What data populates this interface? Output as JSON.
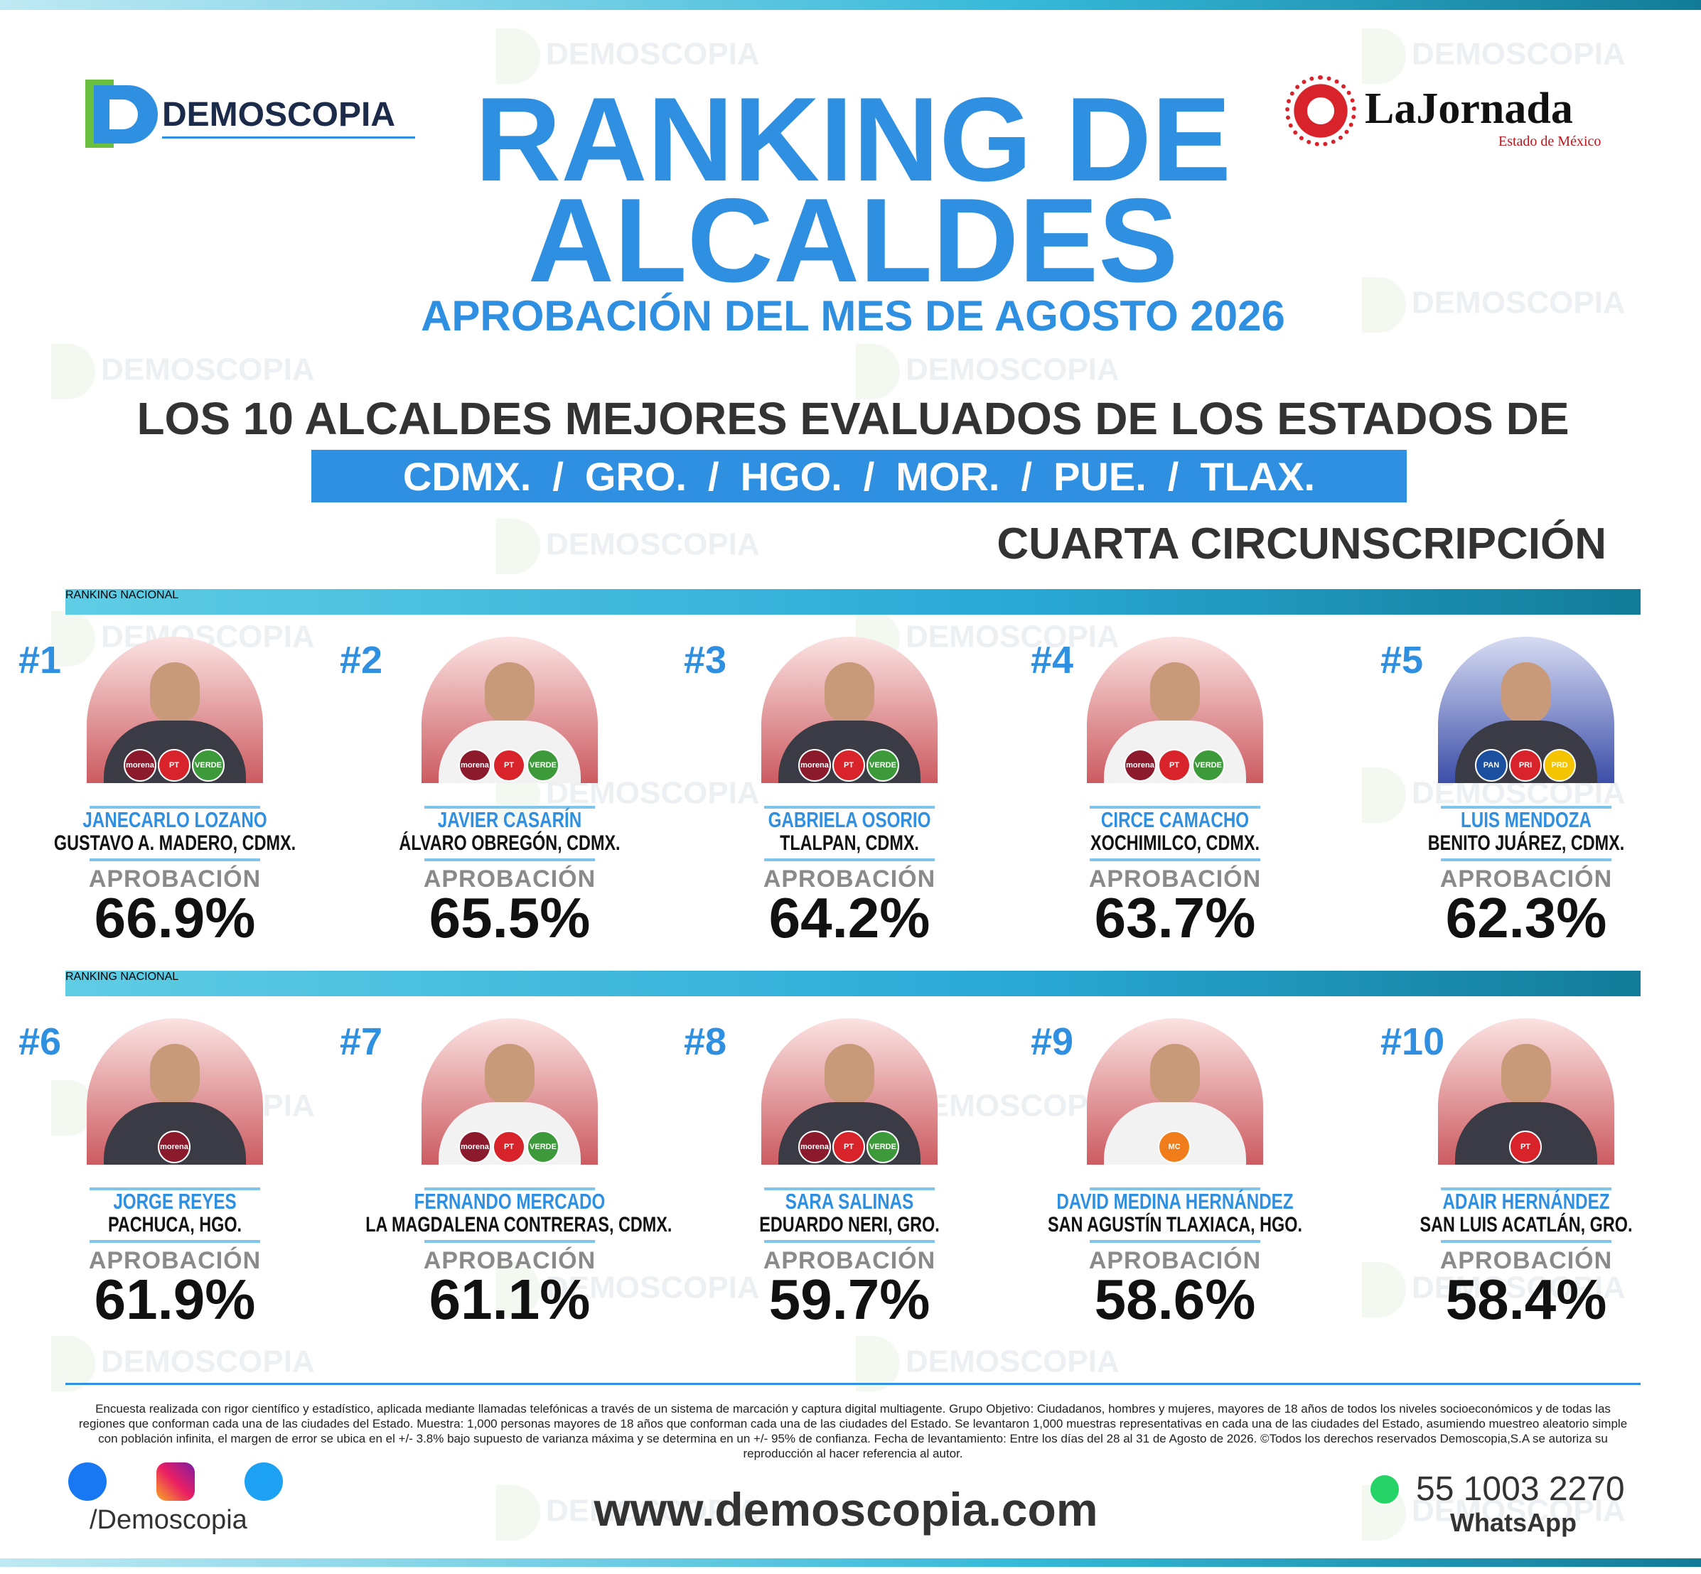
{
  "header": {
    "logo_left": "DEMOSCOPIA",
    "logo_right": "LaJornada",
    "logo_right_sub": "Estado de México",
    "title_line1": "RANKING DE",
    "title_line2": "ALCALDES",
    "subtitle": "APROBACIÓN DEL MES DE AGOSTO 2026",
    "heading": "LOS 10 ALCALDES MEJORES EVALUADOS DE LOS ESTADOS DE",
    "states": [
      "CDMX.",
      "GRO.",
      "HGO.",
      "MOR.",
      "PUE.",
      "TLAX."
    ],
    "state_separator": "/",
    "region": "CUARTA CIRCUNSCRIPCIÓN"
  },
  "watermark": "DEMOSCOPIA",
  "approval_label": "APROBACIÓN",
  "sections": [
    {
      "label": "RANKING NACIONAL",
      "candidates": [
        {
          "rank": "#1",
          "name": "JANECARLO LOZANO",
          "place": "GUSTAVO A. MADERO, CDMX.",
          "approval": "66.9%",
          "parties": [
            "morena",
            "PT",
            "VERDE"
          ]
        },
        {
          "rank": "#2",
          "name": "JAVIER CASARÍN",
          "place": "ÁLVARO OBREGÓN, CDMX.",
          "approval": "65.5%",
          "parties": [
            "morena",
            "PT",
            "VERDE"
          ]
        },
        {
          "rank": "#3",
          "name": "GABRIELA OSORIO",
          "place": "TLALPAN, CDMX.",
          "approval": "64.2%",
          "parties": [
            "morena",
            "PT",
            "VERDE"
          ]
        },
        {
          "rank": "#4",
          "name": "CIRCE CAMACHO",
          "place": "XOCHIMILCO, CDMX.",
          "approval": "63.7%",
          "parties": [
            "morena",
            "PT",
            "VERDE"
          ]
        },
        {
          "rank": "#5",
          "name": "LUIS MENDOZA",
          "place": "BENITO JUÁREZ, CDMX.",
          "approval": "62.3%",
          "parties": [
            "PAN",
            "PRI",
            "PRD"
          ]
        }
      ]
    },
    {
      "label": "RANKING NACIONAL",
      "candidates": [
        {
          "rank": "#6",
          "name": "JORGE REYES",
          "place": "PACHUCA, HGO.",
          "approval": "61.9%",
          "parties": [
            "morena"
          ]
        },
        {
          "rank": "#7",
          "name": "FERNANDO MERCADO",
          "place": "LA MAGDALENA CONTRERAS, CDMX.",
          "approval": "61.1%",
          "parties": [
            "morena",
            "PT",
            "VERDE"
          ]
        },
        {
          "rank": "#8",
          "name": "SARA SALINAS",
          "place": "EDUARDO NERI, GRO.",
          "approval": "59.7%",
          "parties": [
            "morena",
            "PT",
            "VERDE"
          ]
        },
        {
          "rank": "#9",
          "name": "DAVID MEDINA HERNÁNDEZ",
          "place": "SAN AGUSTÍN TLAXIACA, HGO.",
          "approval": "58.6%",
          "parties": [
            "MC"
          ]
        },
        {
          "rank": "#10",
          "name": "ADAIR HERNÁNDEZ",
          "place": "SAN LUIS ACATLÁN, GRO.",
          "approval": "58.4%",
          "parties": [
            "PT"
          ]
        }
      ]
    }
  ],
  "footer": {
    "disclaimer": "Encuesta realizada con rigor científico y estadístico, aplicada mediante llamadas telefónicas a través de un sistema de marcación y captura digital multiagente. Grupo Objetivo: Ciudadanos, hombres y mujeres, mayores de 18 años de todos los niveles socioeconómicos y de todas las regiones que conforman cada una de las ciudades del Estado. Muestra: 1,000 personas mayores de 18 años que conforman cada una de las ciudades del Estado. Se levantaron 1,000 muestras representativas en cada una de las ciudades del Estado, asumiendo muestreo aleatorio simple con población infinita, el margen de error se ubica en el +/- 3.8% bajo supuesto de varianza máxima y se determina en un +/- 95% de confianza. Fecha de levantamiento: Entre los días del 28 al 31 de Agosto de 2026. ©Todos los derechos reservados Demoscopia,S.A se autoriza su reproducción al hacer referencia al autor.",
    "social_handle": "/Demoscopia",
    "website": "www.demoscopia.com",
    "phone": "55 1003 2270",
    "phone_label": "WhatsApp"
  }
}
